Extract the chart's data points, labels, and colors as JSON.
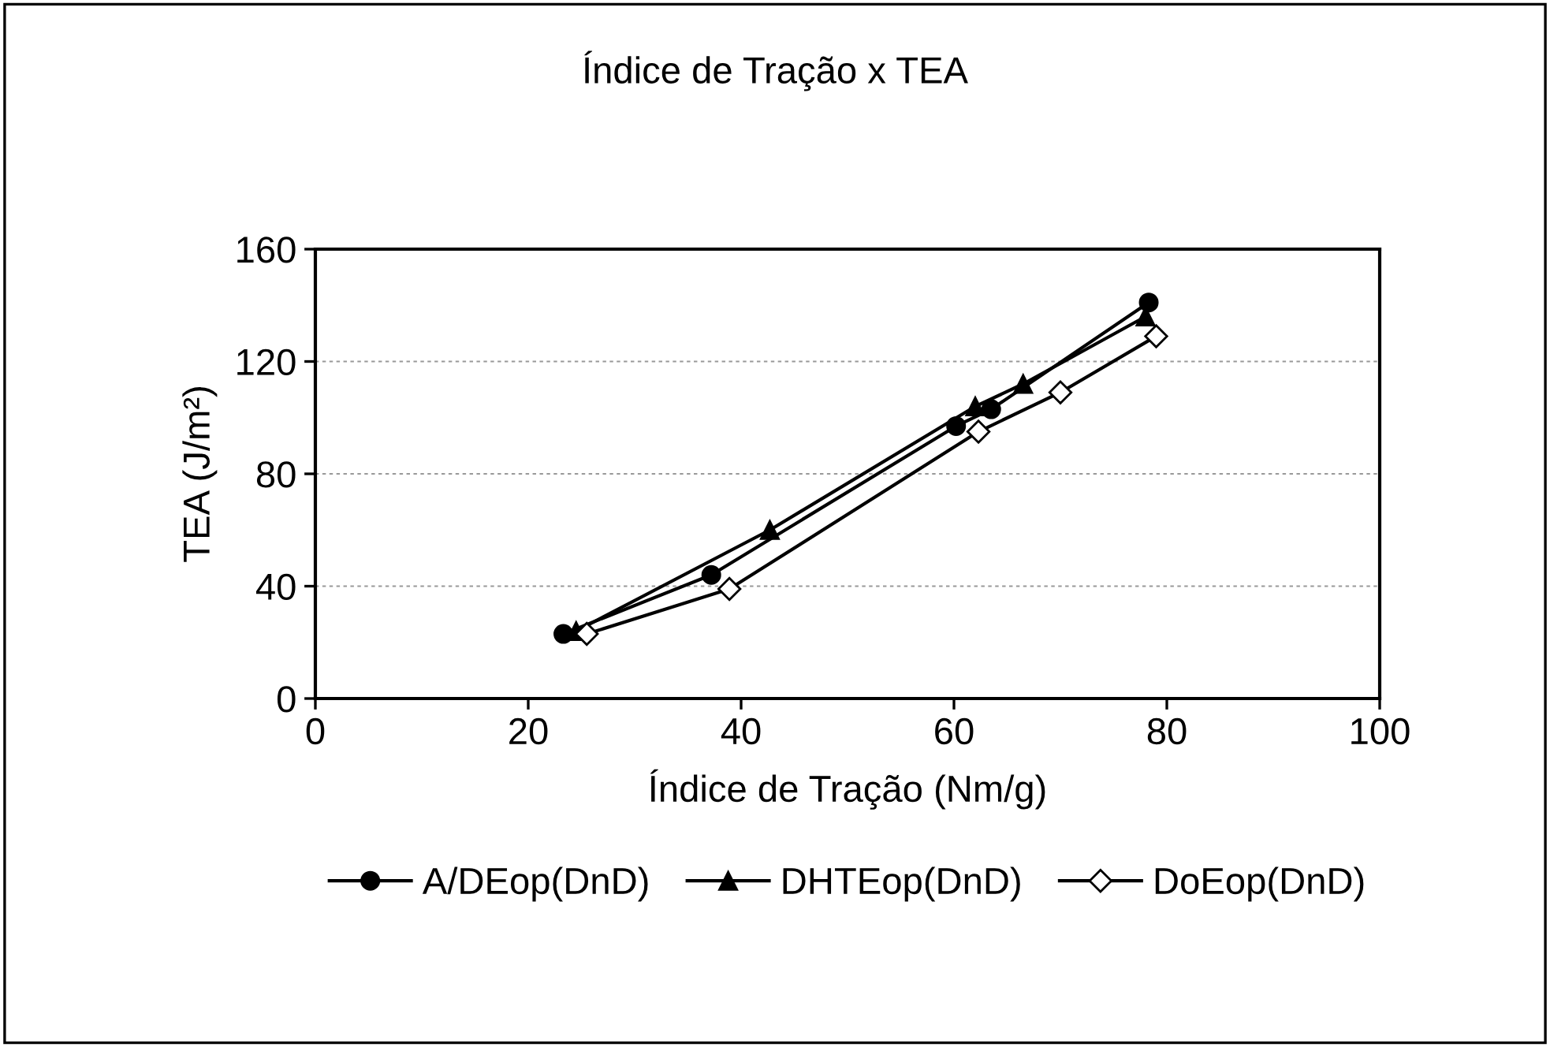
{
  "chart_data": {
    "type": "line",
    "title": "Índice de Tração x TEA",
    "xlabel": "Índice de Tração (Nm/g)",
    "ylabel": "TEA (J/m²)",
    "xlim": [
      0,
      100
    ],
    "xticks": [
      0,
      20,
      40,
      60,
      80,
      100
    ],
    "ylim": [
      0,
      160
    ],
    "yticks": [
      0,
      40,
      80,
      120,
      160
    ],
    "grid": "y",
    "legend": "bottom",
    "line_style": "solid",
    "series": [
      {
        "name": "A/DEop(DnD)",
        "color": "#000000",
        "marker": "circle",
        "x": [
          23.3,
          37.2,
          60.2,
          63.5,
          78.3
        ],
        "values": [
          23,
          44,
          97,
          103,
          141
        ]
      },
      {
        "name": "DHTEop(DnD)",
        "color": "#000000",
        "marker": "triangle",
        "x": [
          24.5,
          42.7,
          62,
          66.5,
          78
        ],
        "values": [
          24,
          60,
          104,
          112,
          136
        ]
      },
      {
        "name": "DoEop(DnD)",
        "color": "#000000",
        "marker": "diamond",
        "x": [
          25.5,
          38.9,
          62.3,
          70,
          79
        ],
        "values": [
          23,
          39,
          95,
          109,
          129
        ]
      }
    ]
  }
}
